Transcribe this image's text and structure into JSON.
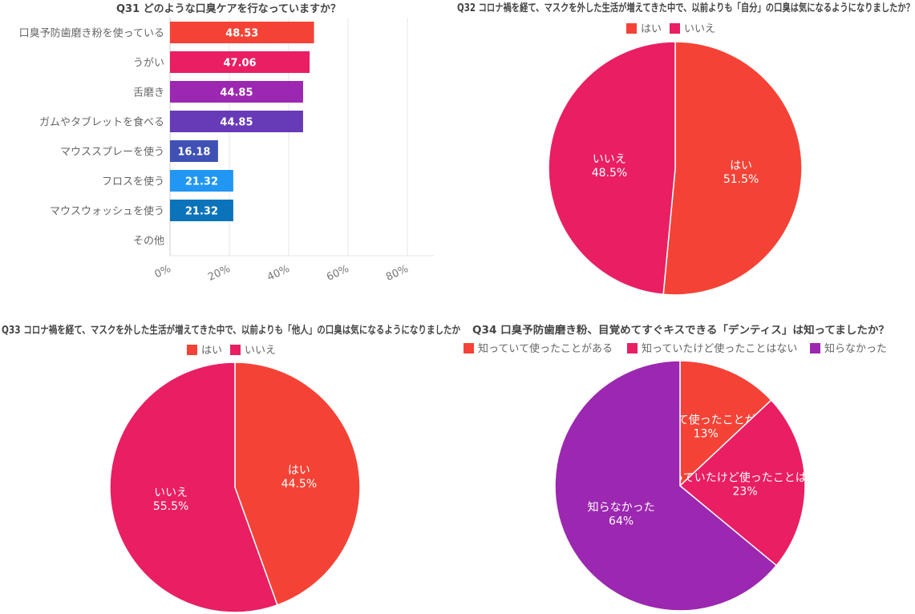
{
  "chart_data": [
    {
      "type": "bar",
      "orientation": "horizontal",
      "title": "Q31 どのような口臭ケアを行なっていますか？",
      "categories": [
        "口臭予防歯磨き粉を使っている",
        "うがい",
        "舌磨き",
        "ガムやタブレットを食べる",
        "マウススプレーを使う",
        "フロスを使う",
        "マウスウォッシュを使う",
        "その他"
      ],
      "values": [
        48.53,
        47.06,
        44.85,
        44.85,
        16.18,
        21.32,
        21.32,
        0
      ],
      "value_labels": [
        "48.53",
        "47.06",
        "44.85",
        "44.85",
        "16.18",
        "21.32",
        "21.32",
        ""
      ],
      "colors": [
        "#F44336",
        "#E91E63",
        "#9C27B0",
        "#673AB7",
        "#3F51B5",
        "#2196F3",
        "#0B73BA",
        "#888888"
      ],
      "xlim": [
        0,
        89
      ],
      "xticks": [
        "0%",
        "20%",
        "40%",
        "60%",
        "80%"
      ],
      "xtick_values": [
        0,
        20,
        40,
        60,
        80
      ],
      "grid": true
    },
    {
      "type": "pie",
      "title": "Q32 コロナ禍を経て、マスクを外した生活が増えてきた中で、以前よりも「自分」の口臭は気になるようになりましたか？",
      "legend": "top",
      "slices": [
        {
          "label": "はい",
          "value": 51.5,
          "pct_label": "51.5%",
          "color": "#F44336"
        },
        {
          "label": "いいえ",
          "value": 48.5,
          "pct_label": "48.5%",
          "color": "#E91E63"
        }
      ]
    },
    {
      "type": "pie",
      "title": "Q33 コロナ禍を経て、マスクを外した生活が増えてきた中で、以前よりも「他人」の口臭は気になるようになりましたか",
      "legend": "top",
      "slices": [
        {
          "label": "はい",
          "value": 44.5,
          "pct_label": "44.5%",
          "color": "#F44336"
        },
        {
          "label": "いいえ",
          "value": 55.5,
          "pct_label": "55.5%",
          "color": "#E91E63"
        }
      ]
    },
    {
      "type": "pie",
      "title": "Q34 口臭予防歯磨き粉、目覚めてすぐキスできる「デンティス」は知ってましたか？",
      "legend": "top",
      "slices": [
        {
          "label": "知っていて使ったことがある",
          "value": 13,
          "pct_label": "13%",
          "color": "#F44336"
        },
        {
          "label": "知っていたけど使ったことはない",
          "value": 23,
          "pct_label": "23%",
          "color": "#E91E63"
        },
        {
          "label": "知らなかった",
          "value": 64,
          "pct_label": "64%",
          "color": "#9C27B0"
        }
      ]
    }
  ]
}
